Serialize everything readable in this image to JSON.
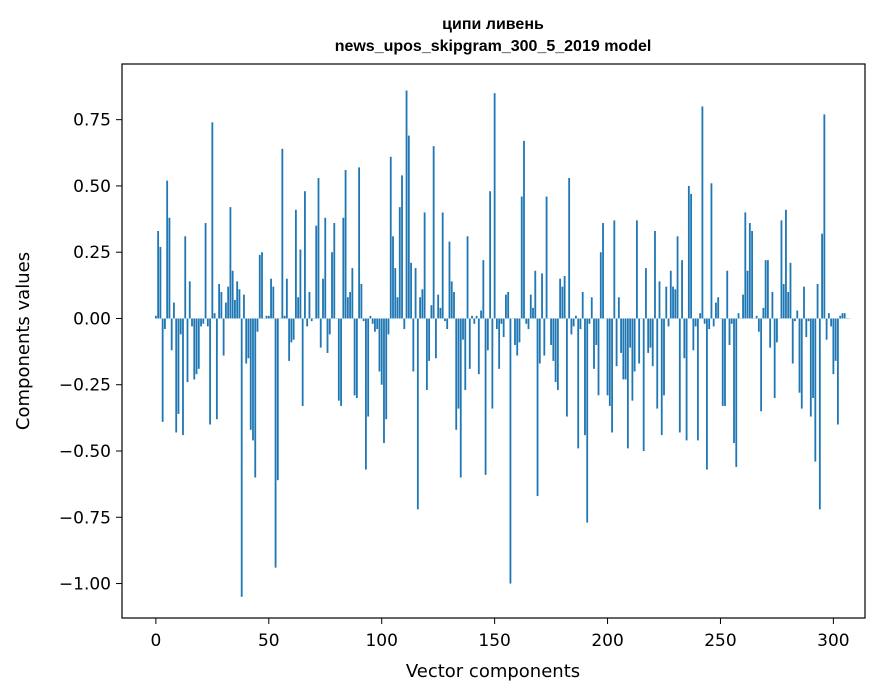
{
  "chart_data": {
    "type": "bar",
    "title": "ципи ливень",
    "subtitle": "news_upos_skipgram_300_5_2019 model",
    "xlabel": "Vector components",
    "ylabel": "Components values",
    "xlim": [
      -15,
      314
    ],
    "ylim": [
      -1.13,
      0.96
    ],
    "xticks": [
      0,
      50,
      100,
      150,
      200,
      250,
      300
    ],
    "yticks": [
      -1.0,
      -0.75,
      -0.5,
      -0.25,
      0.0,
      0.25,
      0.5,
      0.75
    ],
    "ytick_labels": [
      "−1.00",
      "−0.75",
      "−0.50",
      "−0.25",
      "0.00",
      "0.25",
      "0.50",
      "0.75"
    ],
    "xtick_labels": [
      "0",
      "50",
      "100",
      "150",
      "200",
      "250",
      "300"
    ],
    "color": "#1f77b4",
    "grid": false,
    "x_start": 0,
    "values": [
      0.01,
      0.33,
      0.27,
      -0.39,
      -0.04,
      0.52,
      0.38,
      -0.12,
      0.06,
      -0.43,
      -0.36,
      -0.06,
      -0.44,
      0.31,
      -0.24,
      0.14,
      -0.03,
      -0.23,
      -0.21,
      -0.19,
      -0.03,
      -0.02,
      0.36,
      -0.03,
      -0.4,
      0.74,
      0.02,
      -0.38,
      0.13,
      0.1,
      -0.14,
      0.06,
      0.12,
      0.42,
      0.18,
      0.07,
      0.14,
      0.11,
      -1.05,
      0.09,
      -0.17,
      -0.15,
      -0.42,
      -0.46,
      -0.6,
      -0.05,
      0.24,
      0.25,
      0.0,
      0.01,
      0.01,
      0.15,
      0.12,
      -0.94,
      -0.61,
      0.0,
      0.64,
      0.01,
      0.15,
      -0.16,
      -0.09,
      -0.08,
      0.41,
      0.08,
      0.26,
      -0.33,
      0.48,
      -0.03,
      0.1,
      -0.01,
      0.0,
      0.35,
      0.53,
      -0.11,
      0.15,
      0.38,
      -0.13,
      -0.06,
      0.25,
      0.36,
      0.0,
      -0.31,
      -0.33,
      0.38,
      0.56,
      0.08,
      0.1,
      0.19,
      -0.29,
      -0.3,
      0.57,
      0.13,
      -0.01,
      -0.57,
      -0.37,
      0.01,
      -0.02,
      -0.05,
      -0.04,
      -0.2,
      -0.25,
      -0.47,
      -0.38,
      -0.06,
      0.61,
      0.31,
      0.19,
      0.08,
      0.42,
      0.54,
      -0.04,
      0.86,
      0.69,
      0.21,
      -0.2,
      0.19,
      -0.72,
      0.08,
      0.11,
      0.4,
      -0.27,
      -0.16,
      0.05,
      0.65,
      -0.15,
      0.09,
      0.04,
      0.4,
      -0.01,
      -0.04,
      0.29,
      0.14,
      0.1,
      -0.42,
      -0.34,
      -0.6,
      -0.08,
      -0.27,
      0.31,
      -0.19,
      0.01,
      -0.02,
      0.01,
      -0.21,
      0.03,
      0.22,
      -0.59,
      -0.12,
      0.48,
      -0.34,
      0.85,
      -0.04,
      -0.19,
      -0.02,
      -0.07,
      0.09,
      0.1,
      -1.0,
      0.0,
      -0.1,
      -0.14,
      -0.09,
      0.46,
      0.67,
      -0.02,
      -0.04,
      0.09,
      0.04,
      0.18,
      -0.67,
      -0.17,
      0.17,
      -0.14,
      0.46,
      0.0,
      -0.1,
      -0.16,
      -0.24,
      -0.27,
      0.15,
      0.12,
      0.16,
      -0.37,
      0.53,
      -0.06,
      -0.03,
      0.01,
      -0.49,
      -0.04,
      0.1,
      -0.44,
      -0.77,
      -0.02,
      0.08,
      -0.19,
      -0.1,
      -0.29,
      0.25,
      0.36,
      0.0,
      -0.29,
      -0.33,
      -0.43,
      0.37,
      -0.18,
      0.08,
      -0.13,
      -0.23,
      -0.23,
      -0.49,
      -0.11,
      -0.31,
      -0.2,
      0.37,
      -0.17,
      0.0,
      -0.5,
      0.19,
      -0.13,
      -0.11,
      -0.18,
      0.33,
      -0.34,
      0.14,
      -0.44,
      -0.29,
      0.12,
      -0.03,
      0.18,
      0.12,
      0.11,
      0.31,
      -0.43,
      0.22,
      -0.15,
      -0.46,
      0.5,
      0.47,
      -0.12,
      -0.03,
      -0.46,
      0.02,
      0.8,
      -0.02,
      -0.57,
      -0.04,
      0.51,
      -0.03,
      0.06,
      0.08,
      0.0,
      -0.33,
      -0.33,
      0.18,
      -0.1,
      -0.02,
      -0.47,
      -0.56,
      0.02,
      0.0,
      0.09,
      0.4,
      0.18,
      0.36,
      0.33,
      0.0,
      0.01,
      -0.05,
      -0.35,
      0.04,
      0.22,
      0.22,
      -0.11,
      0.1,
      -0.3,
      -0.09,
      0.0,
      0.37,
      0.13,
      0.41,
      0.1,
      0.21,
      -0.17,
      -0.01,
      0.03,
      -0.28,
      -0.34,
      0.12,
      -0.07,
      -0.01,
      -0.37,
      -0.3,
      -0.54,
      0.13,
      -0.72,
      0.32,
      0.77,
      -0.08,
      0.02,
      -0.03,
      -0.21,
      -0.16,
      -0.4,
      0.01,
      0.02,
      0.02,
      0.0,
      0.0
    ]
  }
}
